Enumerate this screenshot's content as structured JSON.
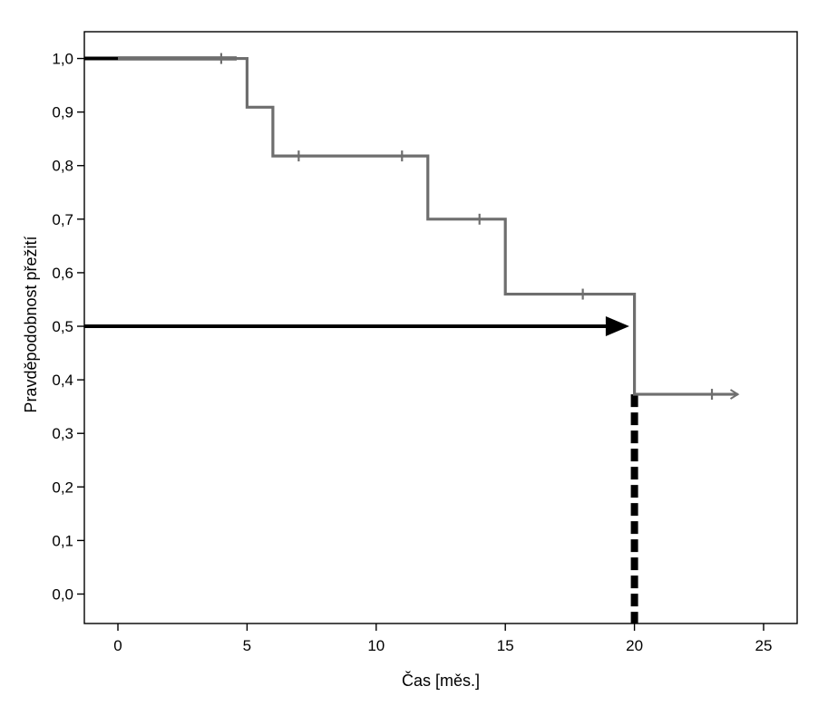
{
  "chart_data": {
    "type": "line",
    "subtype": "kaplan-meier-survival-step",
    "title": "",
    "xlabel": "Čas [měs.]",
    "ylabel": "Pravděpodobnost přežití",
    "xlim": [
      -1.3,
      26.3
    ],
    "ylim": [
      -0.055,
      1.05
    ],
    "x_ticks": [
      0,
      5,
      10,
      15,
      20,
      25
    ],
    "x_tick_labels": [
      "0",
      "5",
      "10",
      "15",
      "20",
      "25"
    ],
    "y_ticks": [
      0.0,
      0.1,
      0.2,
      0.3,
      0.4,
      0.5,
      0.6,
      0.7,
      0.8,
      0.9,
      1.0
    ],
    "y_tick_labels": [
      "0,0",
      "0,1",
      "0,2",
      "0,3",
      "0,4",
      "0,5",
      "0,6",
      "0,7",
      "0,8",
      "0,9",
      "1,0"
    ],
    "grid": false,
    "series": [
      {
        "color": "#6e6e6e",
        "steps": [
          {
            "x": 0,
            "y": 1.0
          },
          {
            "x": 5,
            "y": 0.909
          },
          {
            "x": 6,
            "y": 0.818
          },
          {
            "x": 12,
            "y": 0.7
          },
          {
            "x": 15,
            "y": 0.56
          },
          {
            "x": 20,
            "y": 0.373
          }
        ],
        "end_x": 24,
        "censored": [
          {
            "x": 4,
            "y": 1.0
          },
          {
            "x": 7,
            "y": 0.818
          },
          {
            "x": 11,
            "y": 0.818
          },
          {
            "x": 14,
            "y": 0.7
          },
          {
            "x": 18,
            "y": 0.56
          },
          {
            "x": 23,
            "y": 0.373
          }
        ]
      }
    ],
    "annotations": [
      {
        "type": "arrow",
        "x1": -1.3,
        "y1": 1.0,
        "x2": 4.6,
        "y2": 1.0,
        "color": "#000000",
        "head": false
      },
      {
        "type": "arrow",
        "x1": -1.3,
        "y1": 0.5,
        "x2": 19.8,
        "y2": 0.5,
        "color": "#000000",
        "head": true
      },
      {
        "type": "dashed-line",
        "x1": 20,
        "y1": 0.373,
        "x2": 20,
        "y2": -0.055,
        "color": "#000000"
      }
    ]
  }
}
